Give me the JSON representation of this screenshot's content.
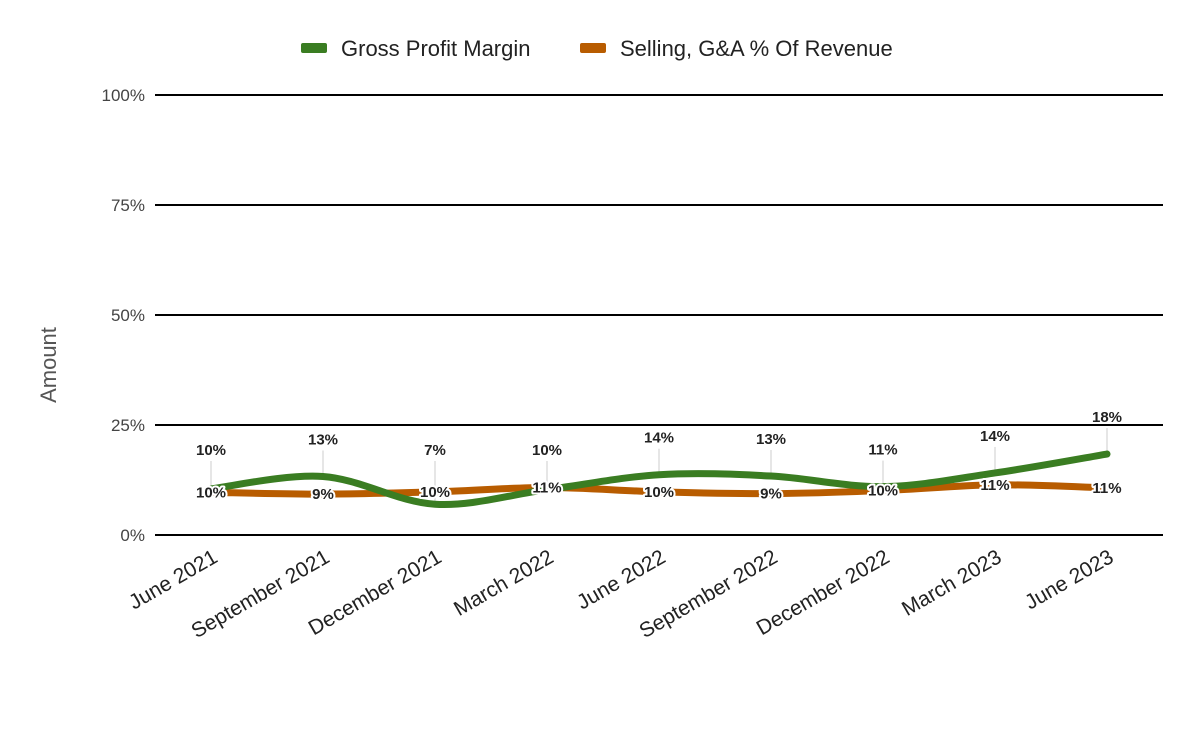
{
  "chart_data": {
    "type": "line",
    "title": "",
    "xlabel": "",
    "ylabel": "Amount",
    "ylim": [
      0,
      100
    ],
    "yticks": [
      "0%",
      "25%",
      "50%",
      "75%",
      "100%"
    ],
    "categories": [
      "June 2021",
      "September 2021",
      "December 2021",
      "March 2022",
      "June 2022",
      "September 2022",
      "December 2022",
      "March 2023",
      "June 2023"
    ],
    "series": [
      {
        "name": "Gross Profit Margin",
        "color": "#3a7d22",
        "values": [
          10.5,
          13.3,
          7.0,
          10.3,
          13.7,
          13.4,
          11.0,
          14.1,
          18.4
        ],
        "labels": [
          "10%",
          "13%",
          "7%",
          "10%",
          "14%",
          "13%",
          "11%",
          "14%",
          "18%"
        ]
      },
      {
        "name": "Selling, G&A % Of Revenue",
        "color": "#b85c00",
        "values": [
          9.7,
          9.3,
          9.8,
          10.8,
          9.8,
          9.4,
          10.1,
          11.4,
          10.7
        ],
        "labels": [
          "10%",
          "9%",
          "10%",
          "11%",
          "10%",
          "9%",
          "10%",
          "11%",
          "11%"
        ]
      }
    ],
    "legend": "top"
  }
}
